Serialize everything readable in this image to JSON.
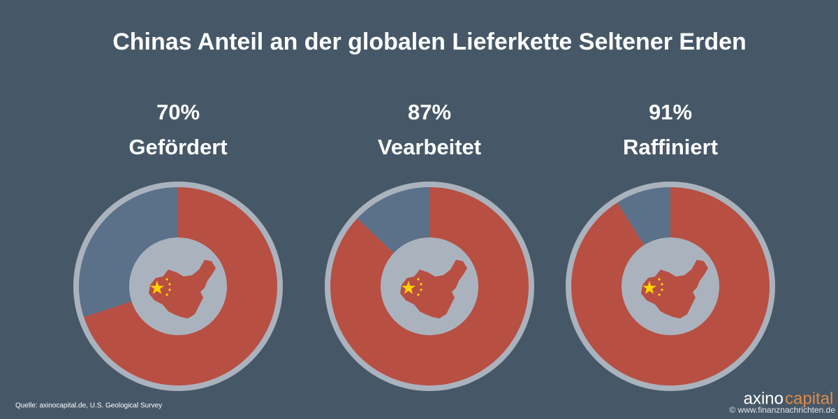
{
  "title": "Chinas Anteil an der globalen Lieferkette Seltener Erden",
  "source": "Quelle: axinocapital.de, U.S. Geological Survey",
  "brand": {
    "first": "axino",
    "second": "capital"
  },
  "watermark": "© www.finanznachrichten.de",
  "chart_data": [
    {
      "type": "pie",
      "title": "Gefördert",
      "values": [
        70,
        30
      ],
      "value_labels": [
        "70%",
        null
      ],
      "colors": [
        "#b84f43",
        "#5b7089"
      ]
    },
    {
      "type": "pie",
      "title": "Vearbeitet",
      "values": [
        87,
        13
      ],
      "value_labels": [
        "87%",
        null
      ],
      "colors": [
        "#b84f43",
        "#5b7089"
      ]
    },
    {
      "type": "pie",
      "title": "Raffiniert",
      "values": [
        91,
        9
      ],
      "value_labels": [
        "91%",
        null
      ],
      "colors": [
        "#b84f43",
        "#5b7089"
      ]
    }
  ]
}
